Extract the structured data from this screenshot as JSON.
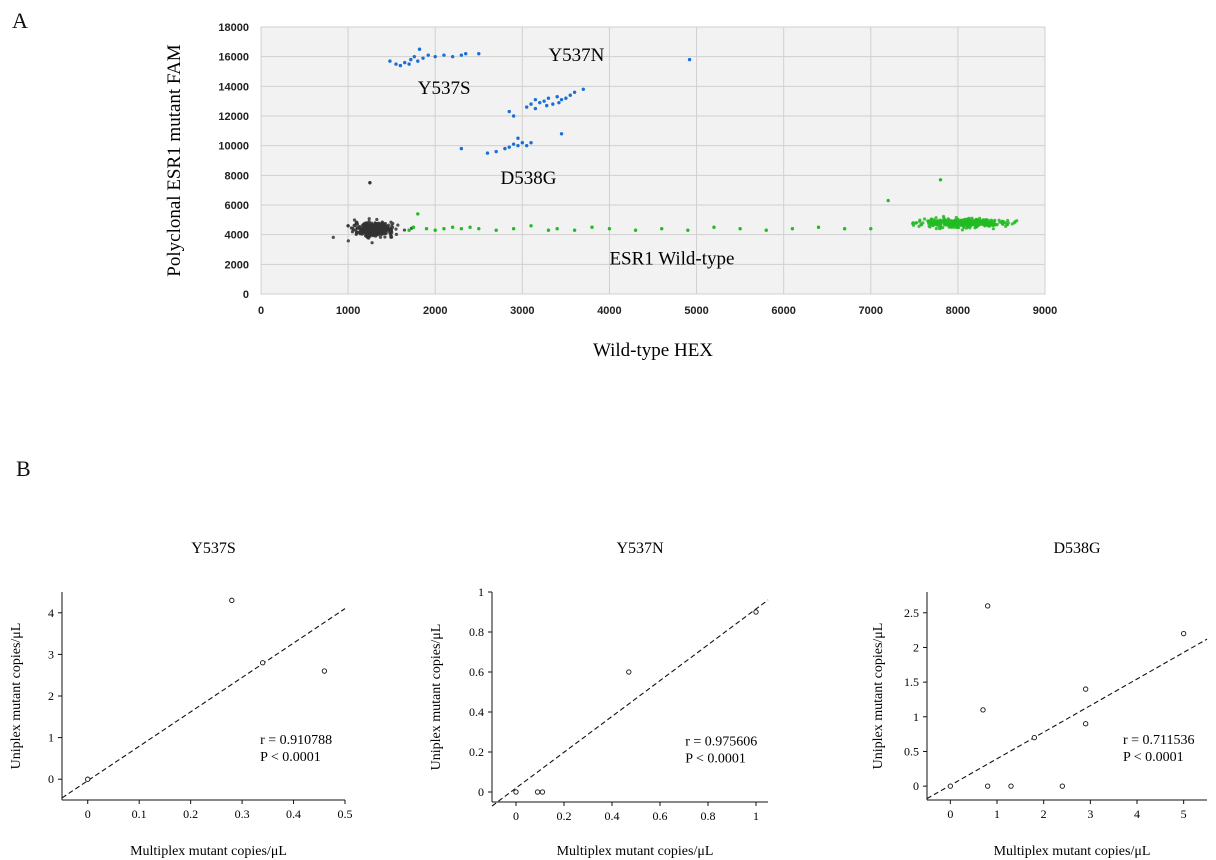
{
  "panels": {
    "a": "A",
    "b": "B"
  },
  "chart_data": [
    {
      "type": "scatter",
      "panel": "A",
      "title": "",
      "xlabel": "Wild-type HEX",
      "ylabel": "Polyclonal ESR1 mutant FAM",
      "xlim": [
        0,
        9000
      ],
      "ylim": [
        0,
        18000
      ],
      "xticks": [
        0,
        1000,
        2000,
        3000,
        4000,
        5000,
        6000,
        7000,
        8000,
        9000
      ],
      "yticks": [
        0,
        2000,
        4000,
        6000,
        8000,
        10000,
        12000,
        14000,
        16000,
        18000
      ],
      "grid": true,
      "colors": {
        "negative": "#333333",
        "wildtype": "#22bb22",
        "mutant": "#1a6fd6",
        "plot_bg": "#f2f2f2"
      },
      "annotations": [
        {
          "text": "Y537N",
          "x": 3300,
          "y": 15700
        },
        {
          "text": "Y537S",
          "x": 1800,
          "y": 13500
        },
        {
          "text": "D538G",
          "x": 2750,
          "y": 7400
        },
        {
          "text": "ESR1 Wild-type",
          "x": 4000,
          "y": 2000
        }
      ],
      "clusters": [
        {
          "name": "negative",
          "color": "#333333",
          "points": [
            [
              1000,
              4600
            ],
            [
              1250,
              7500
            ],
            [
              1100,
              4100
            ]
          ],
          "dense_center": [
            1300,
            4350
          ],
          "dense_spread": [
            110,
            220
          ],
          "dense_count": 420
        },
        {
          "name": "wildtype",
          "color": "#22bb22",
          "points": [
            [
              1700,
              4300
            ],
            [
              1750,
              4500
            ],
            [
              1800,
              5400
            ],
            [
              1900,
              4400
            ],
            [
              2000,
              4300
            ],
            [
              2100,
              4400
            ],
            [
              2200,
              4500
            ],
            [
              2300,
              4400
            ],
            [
              2400,
              4500
            ],
            [
              2500,
              4400
            ],
            [
              2700,
              4300
            ],
            [
              2900,
              4400
            ],
            [
              3100,
              4600
            ],
            [
              3300,
              4300
            ],
            [
              3400,
              4400
            ],
            [
              3600,
              4300
            ],
            [
              3800,
              4500
            ],
            [
              4000,
              4400
            ],
            [
              4300,
              4300
            ],
            [
              4600,
              4400
            ],
            [
              4900,
              4300
            ],
            [
              5200,
              4500
            ],
            [
              5500,
              4400
            ],
            [
              5800,
              4300
            ],
            [
              6100,
              4400
            ],
            [
              6400,
              4500
            ],
            [
              6700,
              4400
            ],
            [
              7000,
              4400
            ],
            [
              7200,
              6300
            ],
            [
              7800,
              7700
            ]
          ],
          "dense_center": [
            8050,
            4800
          ],
          "dense_spread": [
            230,
            150
          ],
          "dense_count": 380
        },
        {
          "name": "Y537S",
          "color": "#1a6fd6",
          "points": [
            [
              1480,
              15700
            ],
            [
              1550,
              15500
            ],
            [
              1600,
              15400
            ],
            [
              1650,
              15600
            ],
            [
              1700,
              15500
            ],
            [
              1720,
              15800
            ],
            [
              1760,
              16000
            ],
            [
              1800,
              15700
            ],
            [
              1820,
              16500
            ],
            [
              1860,
              15900
            ],
            [
              1920,
              16100
            ],
            [
              2000,
              16000
            ],
            [
              2100,
              16100
            ],
            [
              2200,
              16000
            ],
            [
              2300,
              16100
            ],
            [
              2350,
              16200
            ],
            [
              2500,
              16200
            ]
          ]
        },
        {
          "name": "Y537N",
          "color": "#1a6fd6",
          "points": [
            [
              3050,
              12600
            ],
            [
              3100,
              12800
            ],
            [
              3150,
              13100
            ],
            [
              3200,
              12900
            ],
            [
              3250,
              13000
            ],
            [
              3300,
              13200
            ],
            [
              3350,
              12800
            ],
            [
              3400,
              13300
            ],
            [
              3450,
              13100
            ],
            [
              3500,
              13200
            ],
            [
              3550,
              13400
            ],
            [
              3600,
              13600
            ],
            [
              3150,
              12500
            ],
            [
              3280,
              12700
            ],
            [
              3420,
              12900
            ],
            [
              3700,
              13800
            ],
            [
              3450,
              10800
            ],
            [
              4920,
              15800
            ]
          ]
        },
        {
          "name": "D538G",
          "color": "#1a6fd6",
          "points": [
            [
              2300,
              9800
            ],
            [
              2600,
              9500
            ],
            [
              2700,
              9600
            ],
            [
              2800,
              9800
            ],
            [
              2850,
              9900
            ],
            [
              2900,
              10100
            ],
            [
              2950,
              10000
            ],
            [
              3000,
              10200
            ],
            [
              2950,
              10500
            ],
            [
              3050,
              10000
            ],
            [
              2850,
              12300
            ],
            [
              2900,
              12000
            ],
            [
              3100,
              10200
            ]
          ]
        }
      ]
    },
    {
      "type": "scatter",
      "panel": "B",
      "title": "Y537S",
      "xlabel": "Multiplex mutant copies/μL",
      "ylabel": "Uniplex mutant copies/μL",
      "xlim": [
        -0.05,
        0.5
      ],
      "ylim": [
        -0.5,
        4.5
      ],
      "xticks": [
        0,
        0.1,
        0.2,
        0.3,
        0.4,
        0.5
      ],
      "yticks": [
        0,
        1,
        2,
        3,
        4
      ],
      "points": [
        [
          0,
          0
        ],
        [
          0.28,
          4.3
        ],
        [
          0.34,
          2.8
        ],
        [
          0.46,
          2.6
        ]
      ],
      "fit_line": [
        [
          -0.05,
          -0.45
        ],
        [
          0.5,
          4.1
        ]
      ],
      "stats": {
        "r": "r = 0.910788",
        "p": "P < 0.0001"
      }
    },
    {
      "type": "scatter",
      "panel": "B",
      "title": "Y537N",
      "xlabel": "Multiplex mutant copies/μL",
      "ylabel": "Uniplex mutant copies/μL",
      "xlim": [
        -0.1,
        1.05
      ],
      "ylim": [
        -0.05,
        1.0
      ],
      "xticks": [
        0,
        0.2,
        0.4,
        0.6,
        0.8,
        1
      ],
      "yticks": [
        0,
        0.2,
        0.4,
        0.6,
        0.8,
        1
      ],
      "points": [
        [
          0,
          0
        ],
        [
          0.09,
          0
        ],
        [
          0.11,
          0
        ],
        [
          0.47,
          0.6
        ],
        [
          1.0,
          0.9
        ]
      ],
      "fit_line": [
        [
          -0.1,
          -0.07
        ],
        [
          1.05,
          0.96
        ]
      ],
      "stats": {
        "r": "r = 0.975606",
        "p": "P < 0.0001"
      }
    },
    {
      "type": "scatter",
      "panel": "B",
      "title": "D538G",
      "xlabel": "Multiplex mutant copies/μL",
      "ylabel": "Uniplex mutant copies/μL",
      "xlim": [
        -0.5,
        5.5
      ],
      "ylim": [
        -0.2,
        2.8
      ],
      "xticks": [
        0,
        1,
        2,
        3,
        4,
        5
      ],
      "yticks": [
        0,
        0.5,
        1,
        1.5,
        2,
        2.5
      ],
      "points": [
        [
          0,
          0
        ],
        [
          0.7,
          1.1
        ],
        [
          0.8,
          2.6
        ],
        [
          0.8,
          0
        ],
        [
          1.3,
          0
        ],
        [
          1.8,
          0.7
        ],
        [
          2.4,
          0
        ],
        [
          2.9,
          1.4
        ],
        [
          2.9,
          0.9
        ],
        [
          5.0,
          2.2
        ]
      ],
      "fit_line": [
        [
          -0.5,
          -0.18
        ],
        [
          5.5,
          2.12
        ]
      ],
      "stats": {
        "r": "r = 0.711536",
        "p": "P < 0.0001"
      }
    }
  ]
}
